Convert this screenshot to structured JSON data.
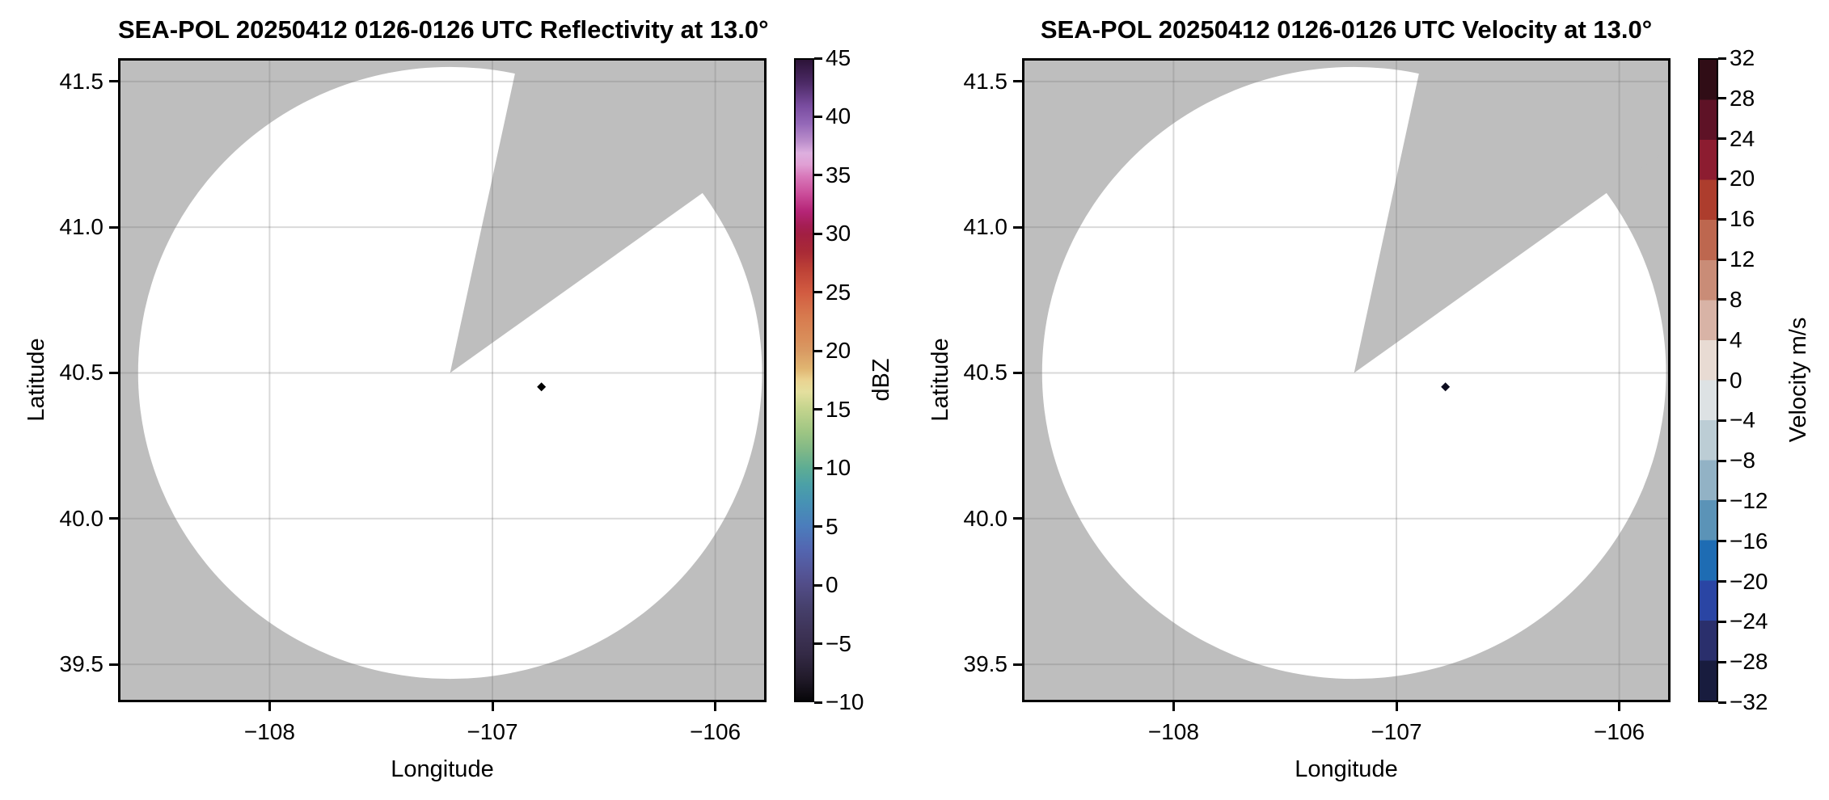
{
  "figure": {
    "background": "#ffffff",
    "outside_scan_color": "#bebebe",
    "scan_area_color": "#ffffff",
    "gridline_color": "rgba(120,120,120,0.28)",
    "spine_color": "#000000"
  },
  "chart_data": [
    {
      "type": "radar_ppi",
      "title": "SEA-POL 20250412 0126-0126 UTC Reflectivity at 13.0°",
      "xlabel": "Longitude",
      "ylabel": "Latitude",
      "xlim": [
        -108.68,
        -105.77
      ],
      "ylim": [
        39.37,
        41.58
      ],
      "xticks": [
        -108,
        -107,
        -106
      ],
      "yticks": [
        41.5,
        41.0,
        40.5,
        40.0,
        39.5
      ],
      "xtick_labels": [
        "−108",
        "−107",
        "−106"
      ],
      "ytick_labels": [
        "41.5",
        "41.0",
        "40.5",
        "40.0",
        "39.5"
      ],
      "grid": true,
      "radar_center": {
        "lon": -107.19,
        "lat": 40.5
      },
      "scan_radius": {
        "lon_deg": 1.4,
        "lat_deg": 1.05
      },
      "missing_sector_azimuth_deg": [
        12,
        54
      ],
      "data_points": [
        {
          "lon": -106.78,
          "lat": 40.452,
          "shape": "diamond",
          "color": "#000000",
          "note": "single echo gate near radar"
        }
      ],
      "colorbar": {
        "label": "dBZ",
        "min": -10,
        "max": 45,
        "type": "continuous",
        "ticks": [
          45,
          40,
          35,
          30,
          25,
          20,
          15,
          10,
          5,
          0,
          -5,
          -10
        ],
        "tick_labels": [
          "45",
          "40",
          "35",
          "30",
          "25",
          "20",
          "15",
          "10",
          "5",
          "0",
          "−5",
          "−10"
        ],
        "gradient_stops": [
          [
            45,
            "#2c1338"
          ],
          [
            43,
            "#4c2a66"
          ],
          [
            41,
            "#7a4da0"
          ],
          [
            39.5,
            "#9468b8"
          ],
          [
            38,
            "#bb8ecb"
          ],
          [
            37,
            "#ddafdf"
          ],
          [
            36,
            "#e0a0d4"
          ],
          [
            35,
            "#d878ba"
          ],
          [
            33.5,
            "#cb4d9a"
          ],
          [
            32,
            "#b52577"
          ],
          [
            30.8,
            "#a51e54"
          ],
          [
            30,
            "#a21f42"
          ],
          [
            28.5,
            "#a92a36"
          ],
          [
            27,
            "#bd4136"
          ],
          [
            25,
            "#d25c41"
          ],
          [
            23,
            "#d77a4e"
          ],
          [
            21,
            "#d98e5a"
          ],
          [
            20,
            "#d99a63"
          ],
          [
            18.5,
            "#e0b571"
          ],
          [
            17.5,
            "#ead391"
          ],
          [
            16.5,
            "#e4df9e"
          ],
          [
            15,
            "#c3d48d"
          ],
          [
            13,
            "#9dc583"
          ],
          [
            11.5,
            "#80b887"
          ],
          [
            10,
            "#5ead93"
          ],
          [
            8.5,
            "#4ba0a7"
          ],
          [
            7,
            "#4792b4"
          ],
          [
            5,
            "#4b7dbc"
          ],
          [
            3,
            "#5366b1"
          ],
          [
            1,
            "#545597"
          ],
          [
            0,
            "#524d89"
          ],
          [
            -2,
            "#46406c"
          ],
          [
            -4,
            "#3e3458"
          ],
          [
            -6,
            "#342a46"
          ],
          [
            -8,
            "#221b2b"
          ],
          [
            -10,
            "#070609"
          ]
        ]
      }
    },
    {
      "type": "radar_ppi",
      "title": "SEA-POL 20250412 0126-0126 UTC Velocity at 13.0°",
      "xlabel": "Longitude",
      "ylabel": "Latitude",
      "xlim": [
        -108.68,
        -105.77
      ],
      "ylim": [
        39.37,
        41.58
      ],
      "xticks": [
        -108,
        -107,
        -106
      ],
      "yticks": [
        41.5,
        41.0,
        40.5,
        40.0,
        39.5
      ],
      "xtick_labels": [
        "−108",
        "−107",
        "−106"
      ],
      "ytick_labels": [
        "41.5",
        "41.0",
        "40.5",
        "40.0",
        "39.5"
      ],
      "grid": true,
      "radar_center": {
        "lon": -107.19,
        "lat": 40.5
      },
      "scan_radius": {
        "lon_deg": 1.4,
        "lat_deg": 1.05
      },
      "missing_sector_azimuth_deg": [
        12,
        54
      ],
      "data_points": [
        {
          "lon": -106.78,
          "lat": 40.452,
          "shape": "diamond",
          "color": "#0d0d1f",
          "note": "single echo gate near radar"
        }
      ],
      "colorbar": {
        "label": "Velocity m/s",
        "min": -32,
        "max": 32,
        "type": "discrete",
        "ticks": [
          32,
          28,
          24,
          20,
          16,
          12,
          8,
          4,
          0,
          -4,
          -8,
          -12,
          -16,
          -20,
          -24,
          -28,
          -32
        ],
        "tick_labels": [
          "32",
          "28",
          "24",
          "20",
          "16",
          "12",
          "8",
          "4",
          "0",
          "−4",
          "−8",
          "−12",
          "−16",
          "−20",
          "−24",
          "−28",
          "−32"
        ],
        "bands": [
          {
            "from": 28,
            "to": 32,
            "color": "#300d16"
          },
          {
            "from": 24,
            "to": 28,
            "color": "#5e1226"
          },
          {
            "from": 20,
            "to": 24,
            "color": "#8c1c30"
          },
          {
            "from": 16,
            "to": 20,
            "color": "#ad3d2d"
          },
          {
            "from": 12,
            "to": 16,
            "color": "#bd674f"
          },
          {
            "from": 8,
            "to": 12,
            "color": "#c98c77"
          },
          {
            "from": 4,
            "to": 8,
            "color": "#d8b3a6"
          },
          {
            "from": 0,
            "to": 4,
            "color": "#e8dbd3"
          },
          {
            "from": -4,
            "to": 0,
            "color": "#dde2e4"
          },
          {
            "from": -8,
            "to": -4,
            "color": "#bccdd5"
          },
          {
            "from": -12,
            "to": -8,
            "color": "#92b2c5"
          },
          {
            "from": -16,
            "to": -12,
            "color": "#5b93b7"
          },
          {
            "from": -20,
            "to": -16,
            "color": "#1e6cb3"
          },
          {
            "from": -24,
            "to": -20,
            "color": "#2a45a4"
          },
          {
            "from": -28,
            "to": -24,
            "color": "#2a2f6c"
          },
          {
            "from": -32,
            "to": -28,
            "color": "#181c3e"
          }
        ]
      }
    }
  ]
}
